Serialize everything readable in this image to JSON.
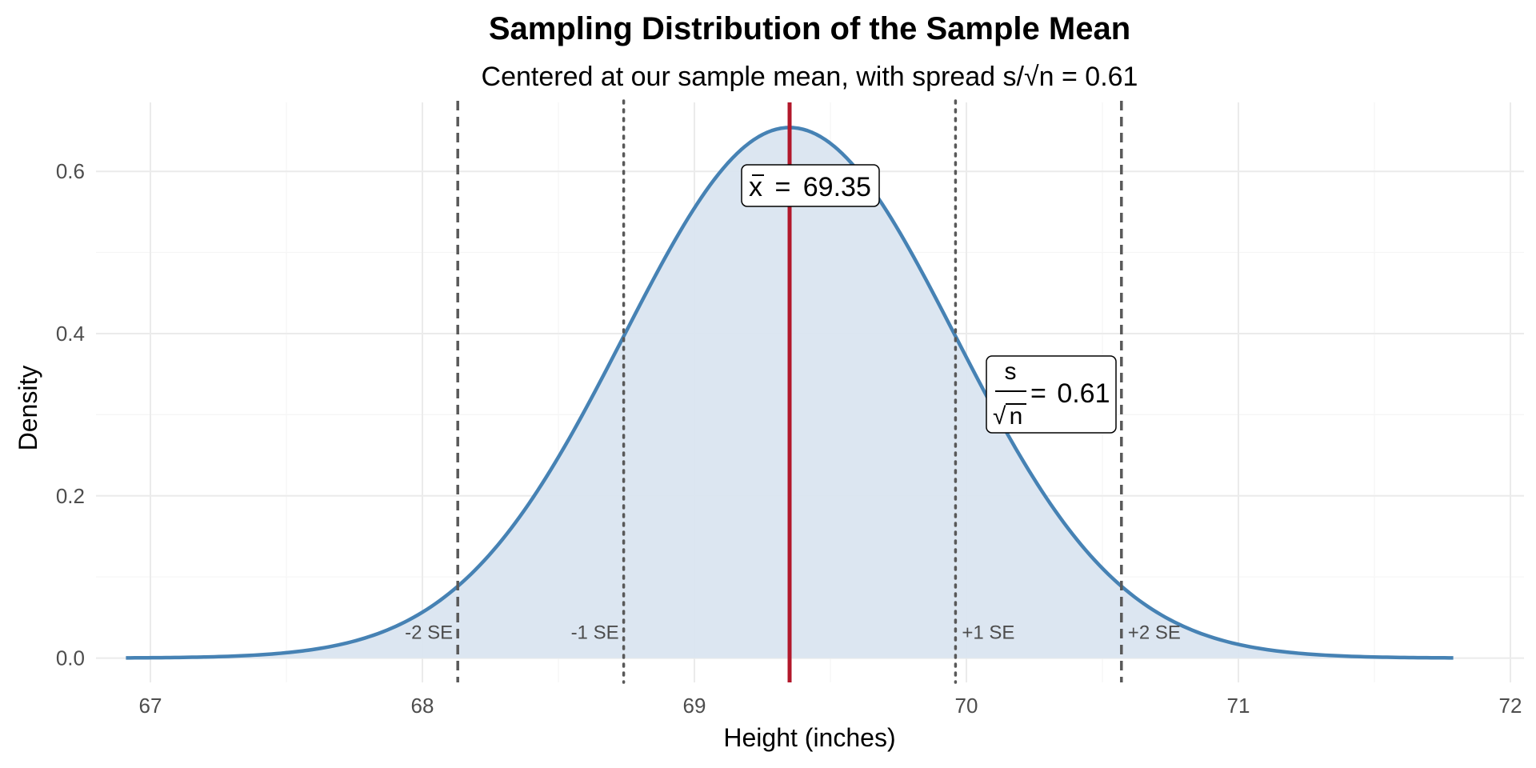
{
  "chart_data": {
    "type": "area",
    "title": "Sampling Distribution of the Sample Mean",
    "subtitle": "Centered at our sample mean, with spread s/√n = 0.61",
    "xlabel": "Height (inches)",
    "ylabel": "Density",
    "xlim": [
      66.8,
      72.05
    ],
    "ylim": [
      -0.03,
      0.685
    ],
    "x_ticks": [
      67,
      68,
      69,
      70,
      71,
      72
    ],
    "x_tick_labels": [
      "67",
      "68",
      "69",
      "70",
      "71",
      "72"
    ],
    "y_ticks": [
      0.0,
      0.2,
      0.4,
      0.6
    ],
    "y_tick_labels": [
      "0.0",
      "0.2",
      "0.4",
      "0.6"
    ],
    "grid": true,
    "distribution": {
      "family": "normal",
      "mean": 69.35,
      "sd": 0.61,
      "x_from": 66.91,
      "x_to": 71.79
    },
    "colors": {
      "curve": "#4682b4",
      "fill": "#dae5f0",
      "mean_line": "#b2182b",
      "se_lines": "#595959",
      "grid_major": "#ebebeb",
      "grid_minor": "#f5f5f5"
    },
    "reference_lines": [
      {
        "name": "minus-2-se",
        "x": 68.13,
        "style": "dashed",
        "label": "-2 SE"
      },
      {
        "name": "minus-1-se",
        "x": 68.74,
        "style": "dotted",
        "label": "-1 SE"
      },
      {
        "name": "plus-1-se",
        "x": 69.96,
        "style": "dotted",
        "label": "+1 SE"
      },
      {
        "name": "plus-2-se",
        "x": 70.57,
        "style": "dashed",
        "label": "+2 SE"
      }
    ],
    "mean_line": {
      "x": 69.35
    },
    "annotations": {
      "mean": {
        "symbol": "x",
        "eq": "=",
        "value": "69.35"
      },
      "se": {
        "numerator": "s",
        "denominator": "n",
        "root": "√",
        "eq": "=",
        "value": "0.61"
      }
    }
  }
}
